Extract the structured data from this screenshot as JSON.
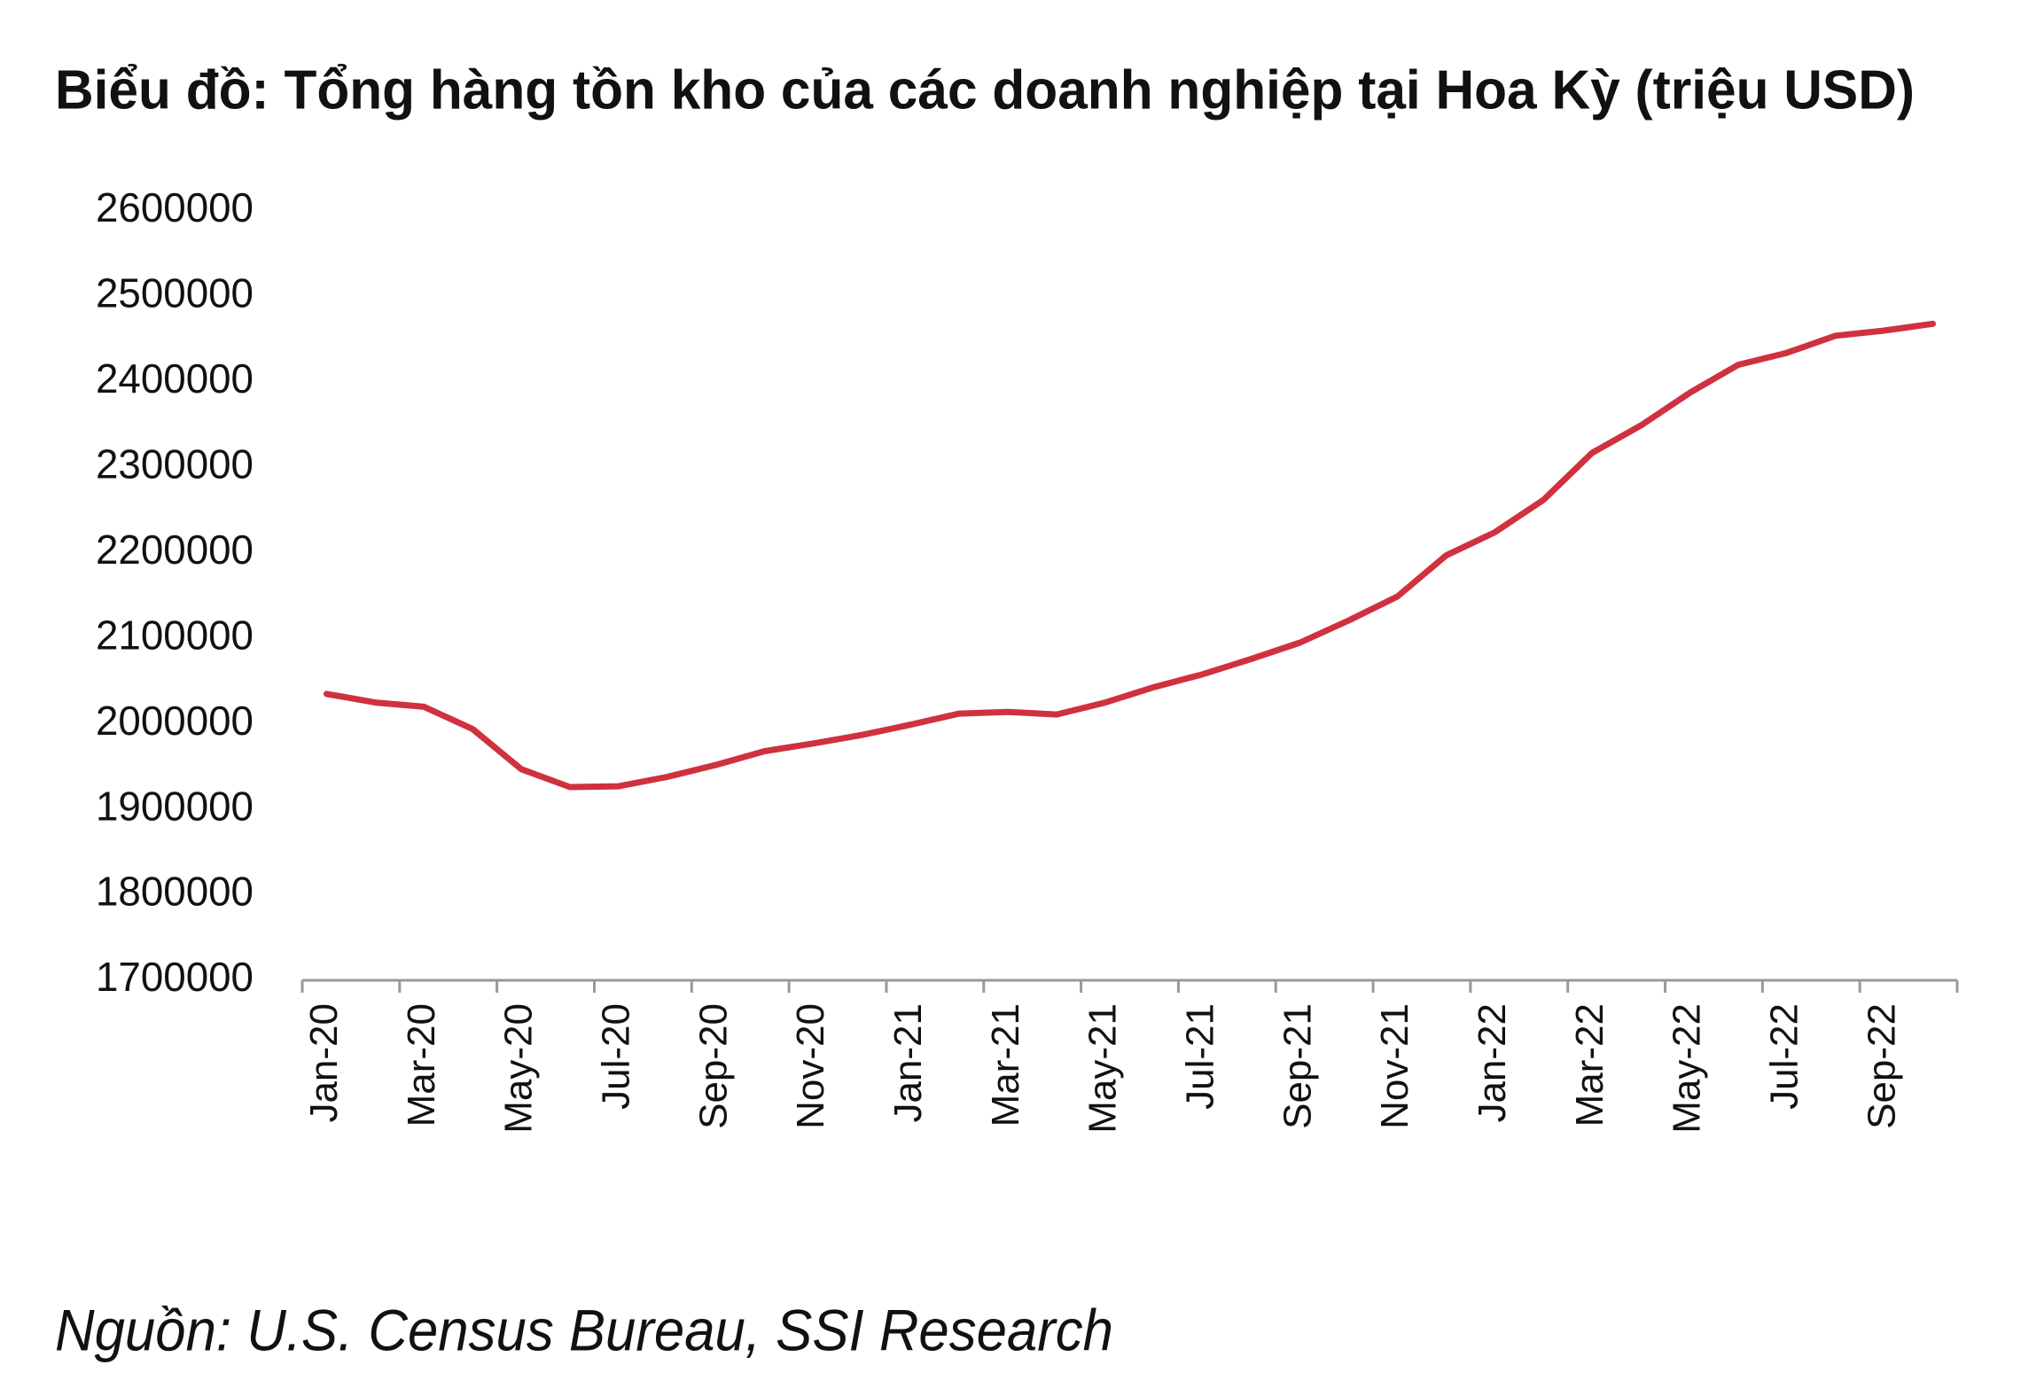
{
  "chart_data": {
    "type": "line",
    "title": "Biểu đồ: Tổng hàng tồn kho của các doanh nghiệp tại Hoa Kỳ (triệu USD)",
    "source": "Nguồn: U.S. Census Bureau, SSI Research",
    "categories": [
      "Jan-20",
      null,
      "Mar-20",
      null,
      "May-20",
      null,
      "Jul-20",
      null,
      "Sep-20",
      null,
      "Nov-20",
      null,
      "Jan-21",
      null,
      "Mar-21",
      null,
      "May-21",
      null,
      "Jul-21",
      null,
      "Sep-21",
      null,
      "Nov-21",
      null,
      "Jan-22",
      null,
      "Mar-22",
      null,
      "May-22",
      null,
      "Jul-22",
      null,
      "Sep-22",
      null
    ],
    "series": [
      {
        "color": "#d0313f",
        "values": [
          2035000,
          2025000,
          2020000,
          1994000,
          1947000,
          1926000,
          1927000,
          1938000,
          1952000,
          1968000,
          1977000,
          1987000,
          1999000,
          2012000,
          2014000,
          2011000,
          2025000,
          2043000,
          2058000,
          2076000,
          2095000,
          2121000,
          2149000,
          2197000,
          2224000,
          2262000,
          2317000,
          2349000,
          2387000,
          2420000,
          2434000,
          2454000,
          2460000,
          2468000
        ]
      }
    ],
    "ylim": [
      1700000,
      2600000
    ],
    "yticks": [
      1700000,
      1800000,
      1900000,
      2000000,
      2100000,
      2200000,
      2300000,
      2400000,
      2500000,
      2600000
    ],
    "grid": false
  }
}
